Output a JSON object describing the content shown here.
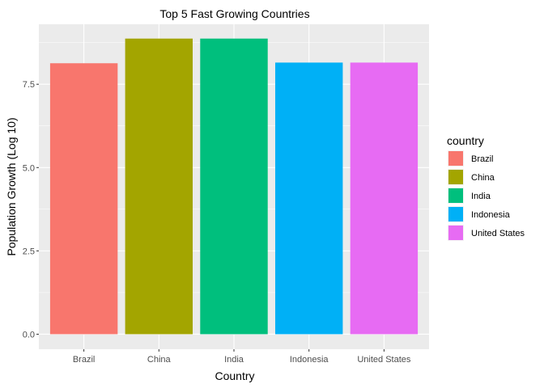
{
  "chart_data": {
    "type": "bar",
    "title": "Top 5 Fast Growing Countries",
    "xlabel": "Country",
    "ylabel": "Population Growth (Log 10)",
    "categories": [
      "Brazil",
      "China",
      "India",
      "Indonesia",
      "United States"
    ],
    "values": [
      8.13,
      8.87,
      8.87,
      8.15,
      8.15
    ],
    "colors": [
      "#F8766D",
      "#A3A500",
      "#00BF7D",
      "#00B0F6",
      "#E76BF3"
    ],
    "ylim": [
      -0.45,
      9.3
    ],
    "yticks": [
      0.0,
      2.5,
      5.0,
      7.5
    ],
    "ytick_labels": [
      "0.0",
      "2.5",
      "5.0",
      "7.5"
    ],
    "grid": true,
    "panel_background": "#EBEBEB",
    "legend": {
      "title": "country",
      "position": "right",
      "entries": [
        "Brazil",
        "China",
        "India",
        "Indonesia",
        "United States"
      ]
    }
  }
}
